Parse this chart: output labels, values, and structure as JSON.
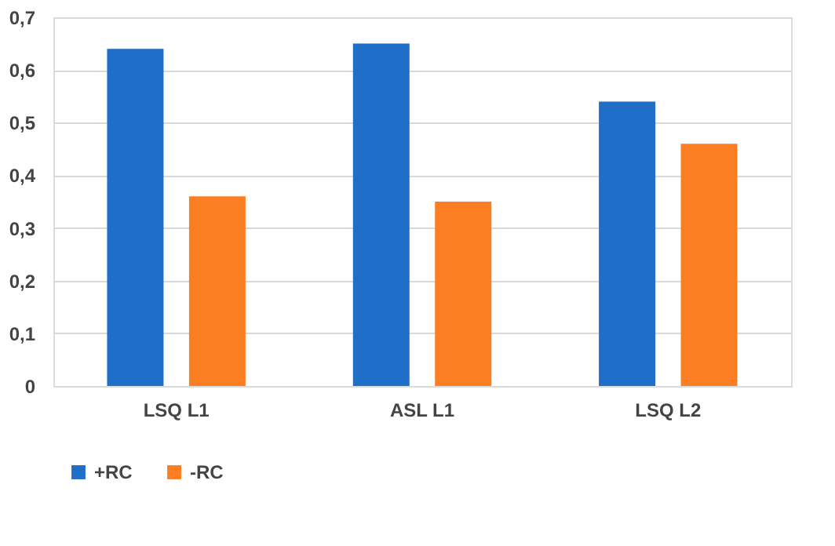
{
  "chart_data": {
    "type": "bar",
    "categories": [
      "LSQ L1",
      "ASL L1",
      "LSQ L2"
    ],
    "series": [
      {
        "name": "+RC",
        "color": "#1f6fc9",
        "values": [
          0.64,
          0.65,
          0.54
        ]
      },
      {
        "name": "-RC",
        "color": "#fb7f22",
        "values": [
          0.36,
          0.35,
          0.46
        ]
      }
    ],
    "ylim": [
      0,
      0.7
    ],
    "yticks": [
      0,
      {
        "value": 0.1,
        "label": "0,1"
      },
      {
        "value": 0.2,
        "label": "0,2"
      },
      {
        "value": 0.3,
        "label": "0,3"
      },
      {
        "value": 0.4,
        "label": "0,4"
      },
      {
        "value": 0.5,
        "label": "0,5"
      },
      {
        "value": 0.6,
        "label": "0,6"
      },
      {
        "value": 0.7,
        "label": "0,7"
      }
    ],
    "grid": "y",
    "legend": "bottom"
  }
}
